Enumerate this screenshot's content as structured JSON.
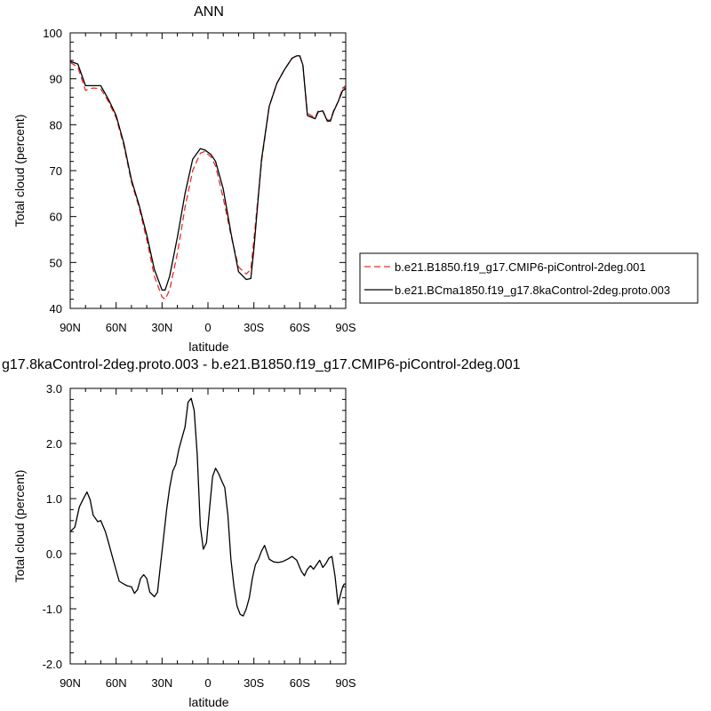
{
  "chart_data": [
    {
      "type": "line",
      "title": "ANN",
      "xlabel": "latitude",
      "ylabel": "Total cloud (percent)",
      "ylim": [
        40,
        100
      ],
      "yticks": [
        "40",
        "50",
        "60",
        "70",
        "80",
        "90",
        "100"
      ],
      "xlim": [
        90,
        -90
      ],
      "xticks": [
        "90N",
        "60N",
        "30N",
        "0",
        "30S",
        "60S",
        "90S"
      ],
      "grid": false,
      "legend_position": "right",
      "series": [
        {
          "name": "b.e21.B1850.f19_g17.CMIP6-piControl-2deg.001",
          "color": "#e0302a",
          "dash": "dashed",
          "x": [
            90,
            85,
            80,
            75,
            70,
            65,
            60,
            55,
            50,
            45,
            40,
            35,
            30,
            28,
            25,
            20,
            15,
            10,
            5,
            2,
            0,
            -2,
            -5,
            -10,
            -15,
            -20,
            -25,
            -28,
            -30,
            -35,
            -40,
            -45,
            -50,
            -55,
            -58,
            -60,
            -62,
            -65,
            -70,
            -72,
            -75,
            -78,
            -80,
            -82,
            -85,
            -88,
            -90
          ],
          "y": [
            93.6,
            92.5,
            87.5,
            88.0,
            87.8,
            85.0,
            81.5,
            75.5,
            67.5,
            62.0,
            55.0,
            47.0,
            42.5,
            42.0,
            44.0,
            52.0,
            62.0,
            70.0,
            73.8,
            74.2,
            73.5,
            73.0,
            71.0,
            64.0,
            56.0,
            49.0,
            47.5,
            48.5,
            55.0,
            72.0,
            84.0,
            89.0,
            92.0,
            94.5,
            95.0,
            95.0,
            93.0,
            82.5,
            81.5,
            83.0,
            83.0,
            81.0,
            81.0,
            83.0,
            85.0,
            88.0,
            88.5
          ]
        },
        {
          "name": "b.e21.BCma1850.f19_g17.8kaControl-2deg.proto.003",
          "color": "#000000",
          "dash": "solid",
          "x": [
            90,
            85,
            80,
            75,
            70,
            65,
            60,
            55,
            50,
            45,
            40,
            35,
            30,
            28,
            25,
            20,
            15,
            10,
            5,
            2,
            0,
            -2,
            -5,
            -10,
            -15,
            -20,
            -25,
            -28,
            -30,
            -35,
            -40,
            -45,
            -50,
            -55,
            -58,
            -60,
            -62,
            -65,
            -70,
            -72,
            -75,
            -78,
            -80,
            -82,
            -85,
            -88,
            -90
          ],
          "y": [
            93.8,
            93.2,
            88.5,
            88.5,
            88.5,
            85.5,
            82.0,
            76.0,
            68.0,
            62.5,
            56.0,
            48.5,
            44.0,
            44.0,
            47.0,
            55.5,
            65.0,
            72.5,
            74.8,
            74.5,
            74.0,
            73.5,
            72.0,
            66.0,
            56.5,
            48.0,
            46.3,
            46.5,
            53.0,
            72.5,
            84.0,
            89.0,
            92.0,
            94.5,
            95.0,
            95.0,
            93.0,
            82.0,
            81.3,
            82.8,
            83.0,
            80.8,
            80.8,
            82.8,
            85.0,
            87.5,
            87.8
          ]
        }
      ]
    },
    {
      "type": "line",
      "title": "g17.8kaControl-2deg.proto.003 - b.e21.B1850.f19_g17.CMIP6-piControl-2deg.001",
      "xlabel": "latitude",
      "ylabel": "Total cloud (percent)",
      "ylim": [
        -2.0,
        3.0
      ],
      "yticks": [
        "-2.0",
        "-1.0",
        "0.0",
        "1.0",
        "2.0",
        "3.0"
      ],
      "xlim": [
        90,
        -90
      ],
      "xticks": [
        "90N",
        "60N",
        "30N",
        "0",
        "30S",
        "60S",
        "90S"
      ],
      "grid": false,
      "series": [
        {
          "color": "#000000",
          "x": [
            90,
            87,
            84,
            81,
            79,
            77,
            75,
            72,
            70,
            67,
            65,
            62,
            58,
            55,
            53,
            50,
            48,
            46,
            44,
            42,
            40,
            38,
            35,
            33,
            31,
            29,
            27,
            25,
            23,
            21,
            19,
            17,
            15,
            13,
            11,
            9,
            7,
            5,
            3,
            1,
            -1,
            -3,
            -5,
            -7,
            -9,
            -11,
            -13,
            -15,
            -17,
            -19,
            -21,
            -23,
            -25,
            -27,
            -29,
            -31,
            -33,
            -35,
            -37,
            -40,
            -43,
            -46,
            -49,
            -52,
            -55,
            -58,
            -61,
            -63,
            -65,
            -67,
            -69,
            -71,
            -73,
            -75,
            -77,
            -79,
            -81,
            -83,
            -85,
            -87,
            -88,
            -89,
            -90
          ],
          "y": [
            0.4,
            0.48,
            0.85,
            1.02,
            1.12,
            0.98,
            0.7,
            0.58,
            0.6,
            0.4,
            0.2,
            -0.1,
            -0.5,
            -0.55,
            -0.58,
            -0.6,
            -0.72,
            -0.65,
            -0.45,
            -0.38,
            -0.45,
            -0.7,
            -0.78,
            -0.7,
            -0.2,
            0.3,
            0.8,
            1.2,
            1.5,
            1.62,
            1.9,
            2.1,
            2.3,
            2.75,
            2.82,
            2.6,
            1.8,
            0.5,
            0.08,
            0.2,
            0.8,
            1.4,
            1.55,
            1.45,
            1.32,
            1.2,
            0.7,
            -0.1,
            -0.6,
            -0.95,
            -1.1,
            -1.13,
            -1.0,
            -0.8,
            -0.45,
            -0.2,
            -0.1,
            0.05,
            0.15,
            -0.1,
            -0.15,
            -0.16,
            -0.14,
            -0.1,
            -0.05,
            -0.12,
            -0.32,
            -0.4,
            -0.28,
            -0.22,
            -0.28,
            -0.2,
            -0.12,
            -0.25,
            -0.18,
            -0.08,
            -0.05,
            -0.4,
            -0.92,
            -0.7,
            -0.6,
            -0.55,
            -0.55
          ]
        }
      ]
    }
  ]
}
